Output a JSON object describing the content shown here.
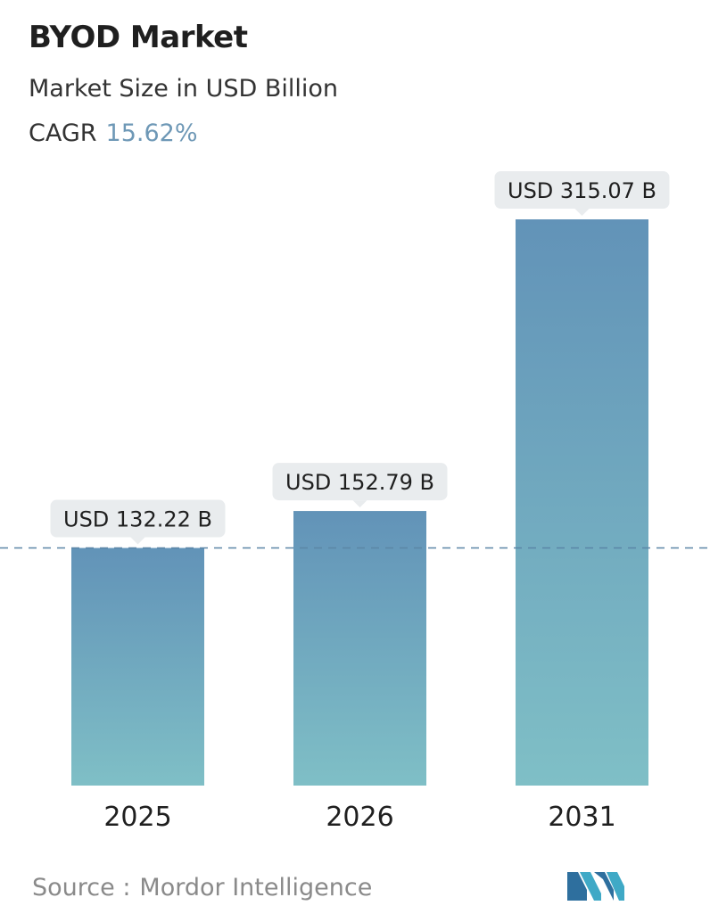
{
  "header": {
    "title": "BYOD Market",
    "subtitle": "Market Size in USD Billion",
    "cagr_label": "CAGR",
    "cagr_value": "15.62%"
  },
  "footer": {
    "source_label": "Source :",
    "source_name": "Mordor Intelligence",
    "logo_icon": "mordor-intelligence-logo-icon"
  },
  "colors": {
    "bar_top": "#6293b8",
    "bar_bottom": "#7fbfc6",
    "label_bg": "#e9ecee",
    "reference_line": "#5b86a6",
    "cagr_accent": "#6e98b6"
  },
  "chart_data": {
    "type": "bar",
    "categories": [
      "2025",
      "2026",
      "2031"
    ],
    "values": [
      132.22,
      152.79,
      315.07
    ],
    "data_labels": [
      "USD 132.22 B",
      "USD 152.79 B",
      "USD 315.07 B"
    ],
    "title": "BYOD Market",
    "subtitle": "Market Size in USD Billion",
    "xlabel": "",
    "ylabel": "",
    "ylim": [
      0,
      315.07
    ],
    "grid": false,
    "reference_line": 132.22
  }
}
